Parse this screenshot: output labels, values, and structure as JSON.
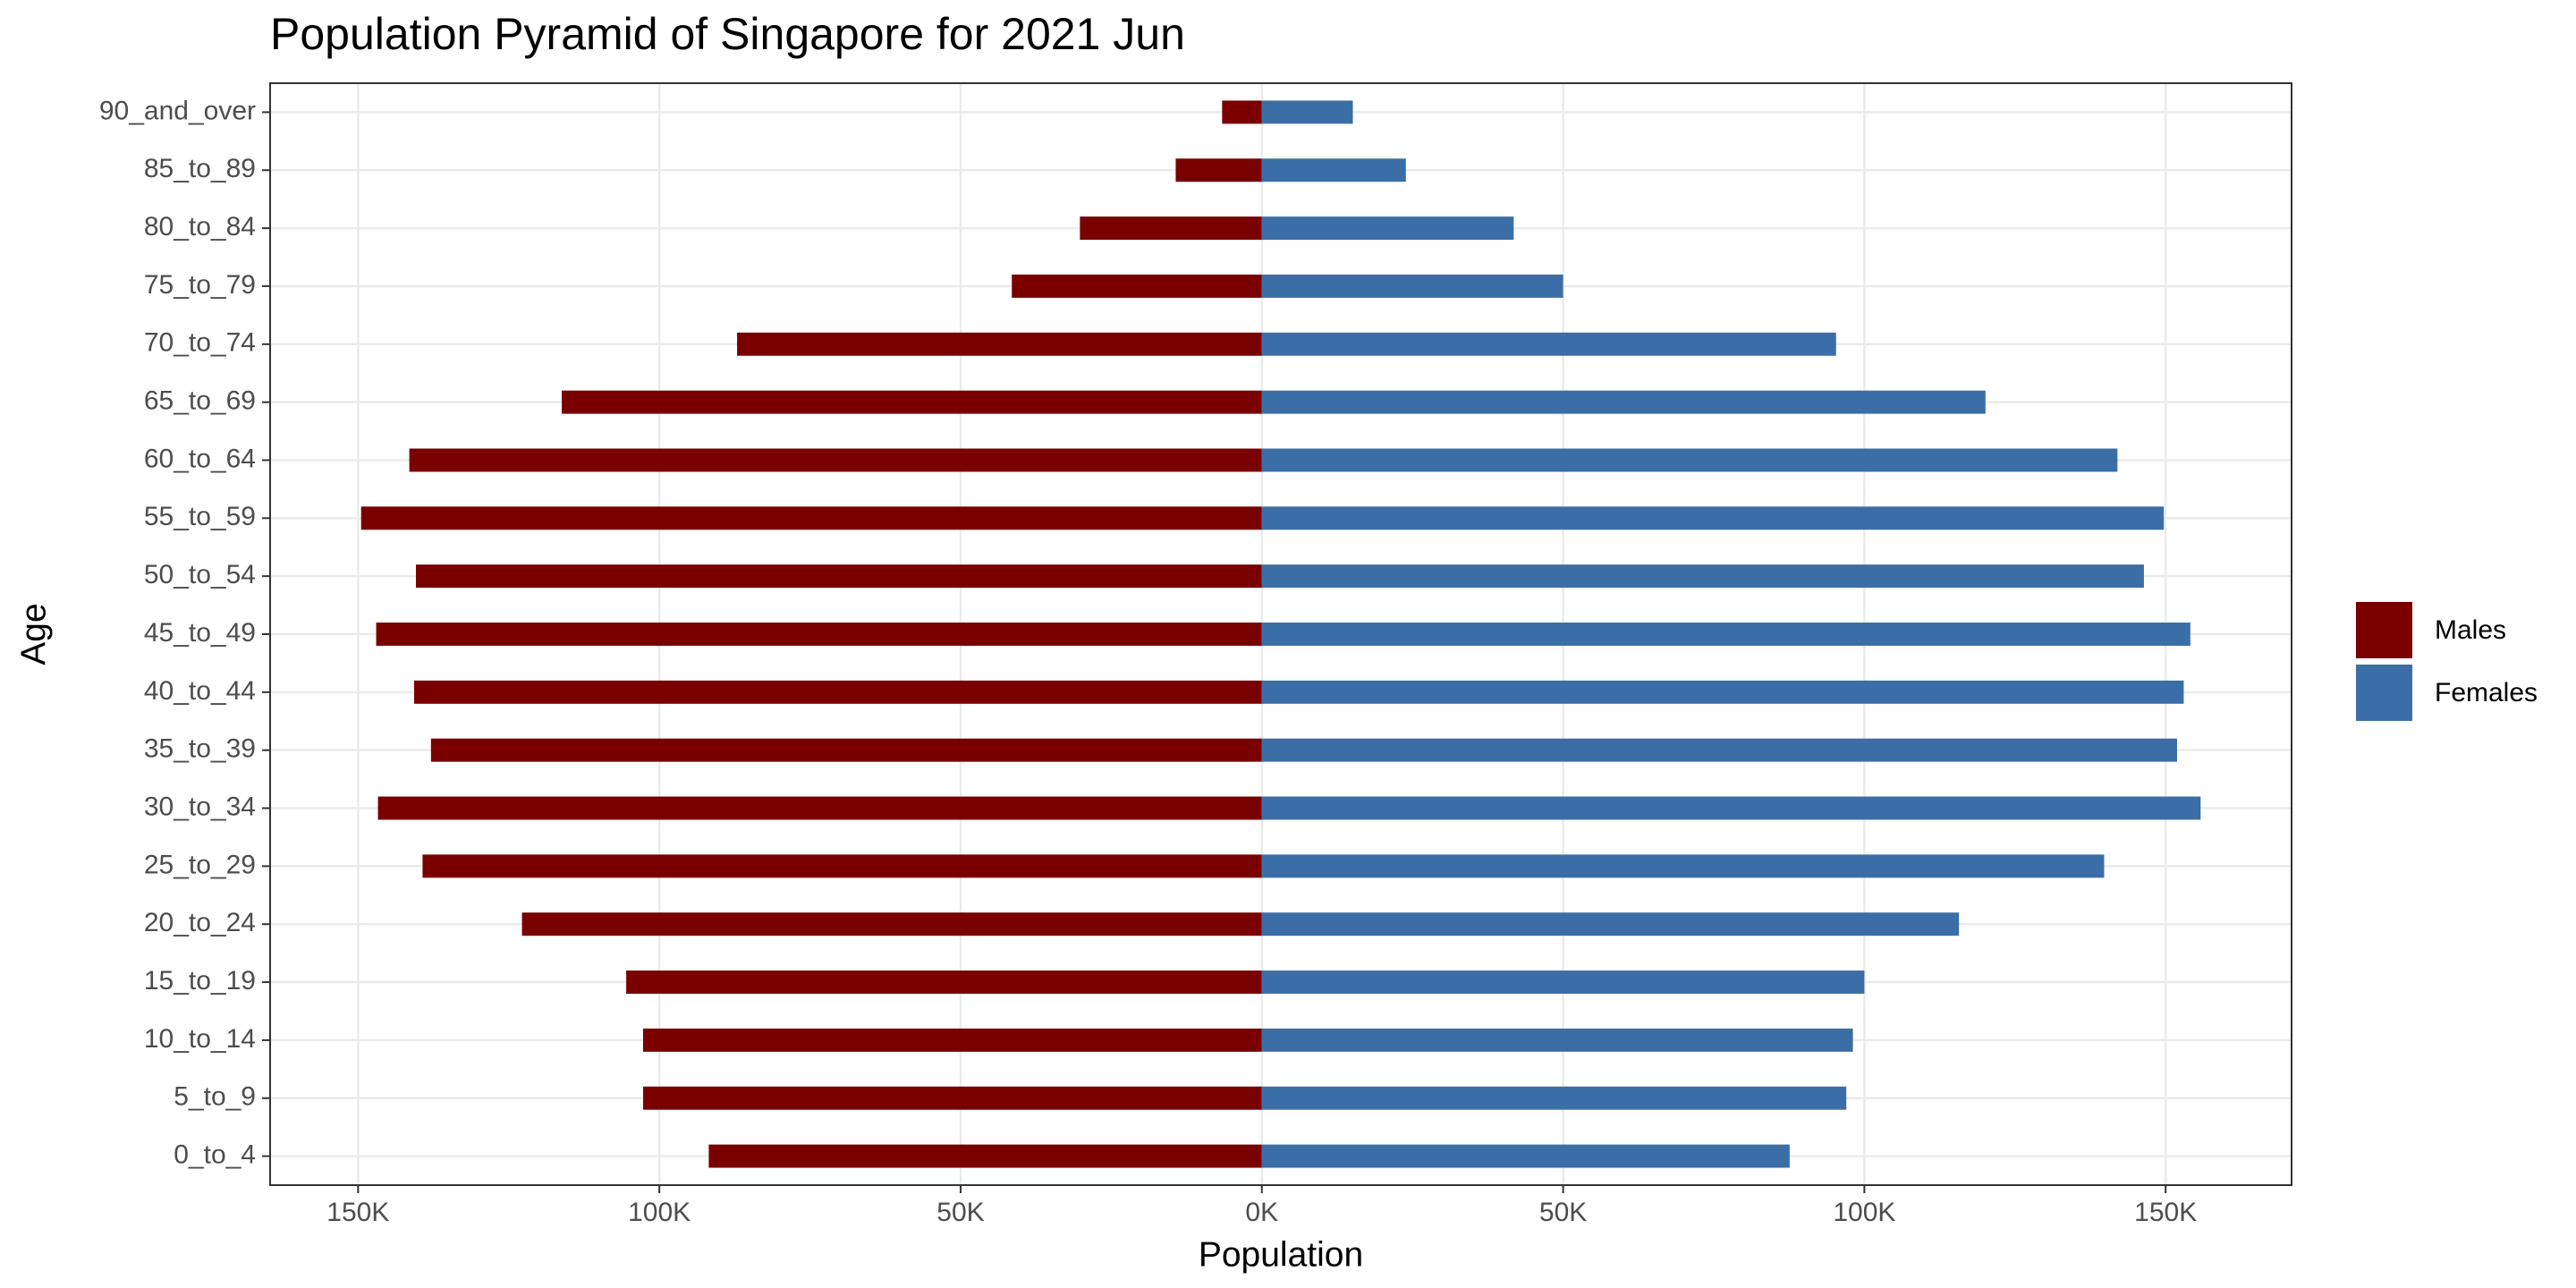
{
  "chart_data": {
    "type": "bar",
    "orientation": "horizontal",
    "title": "Population Pyramid of Singapore for 2021 Jun",
    "x_label": "Population",
    "y_label": "Age",
    "categories": [
      "0_to_4",
      "5_to_9",
      "10_to_14",
      "15_to_19",
      "20_to_24",
      "25_to_29",
      "30_to_34",
      "35_to_39",
      "40_to_44",
      "45_to_49",
      "50_to_54",
      "55_to_59",
      "60_to_64",
      "65_to_69",
      "70_to_74",
      "75_to_79",
      "80_to_84",
      "85_to_89",
      "90_and_over"
    ],
    "series": [
      {
        "name": "Males",
        "color": "#7a0000",
        "values": [
          -91800,
          -102700,
          -102700,
          -105500,
          -122800,
          -139300,
          -146700,
          -137900,
          -140700,
          -147000,
          -140400,
          -149500,
          -141500,
          -116200,
          -87100,
          -41500,
          -30200,
          -14300,
          -6600
        ]
      },
      {
        "name": "Females",
        "color": "#3b6ea6",
        "values": [
          87600,
          97000,
          98100,
          100000,
          115700,
          139800,
          155800,
          151900,
          153000,
          154100,
          146400,
          149700,
          142000,
          120100,
          95300,
          50000,
          41800,
          23900,
          15100
        ]
      }
    ],
    "xlim": [
      -164600,
      170900
    ],
    "xticks": [
      {
        "value": -150000,
        "label": "150K"
      },
      {
        "value": -100000,
        "label": "100K"
      },
      {
        "value": -50000,
        "label": "50K"
      },
      {
        "value": 0,
        "label": "0K"
      },
      {
        "value": 50000,
        "label": "50K"
      },
      {
        "value": 100000,
        "label": "100K"
      },
      {
        "value": 150000,
        "label": "150K"
      }
    ],
    "grid": true,
    "legend": "right"
  }
}
